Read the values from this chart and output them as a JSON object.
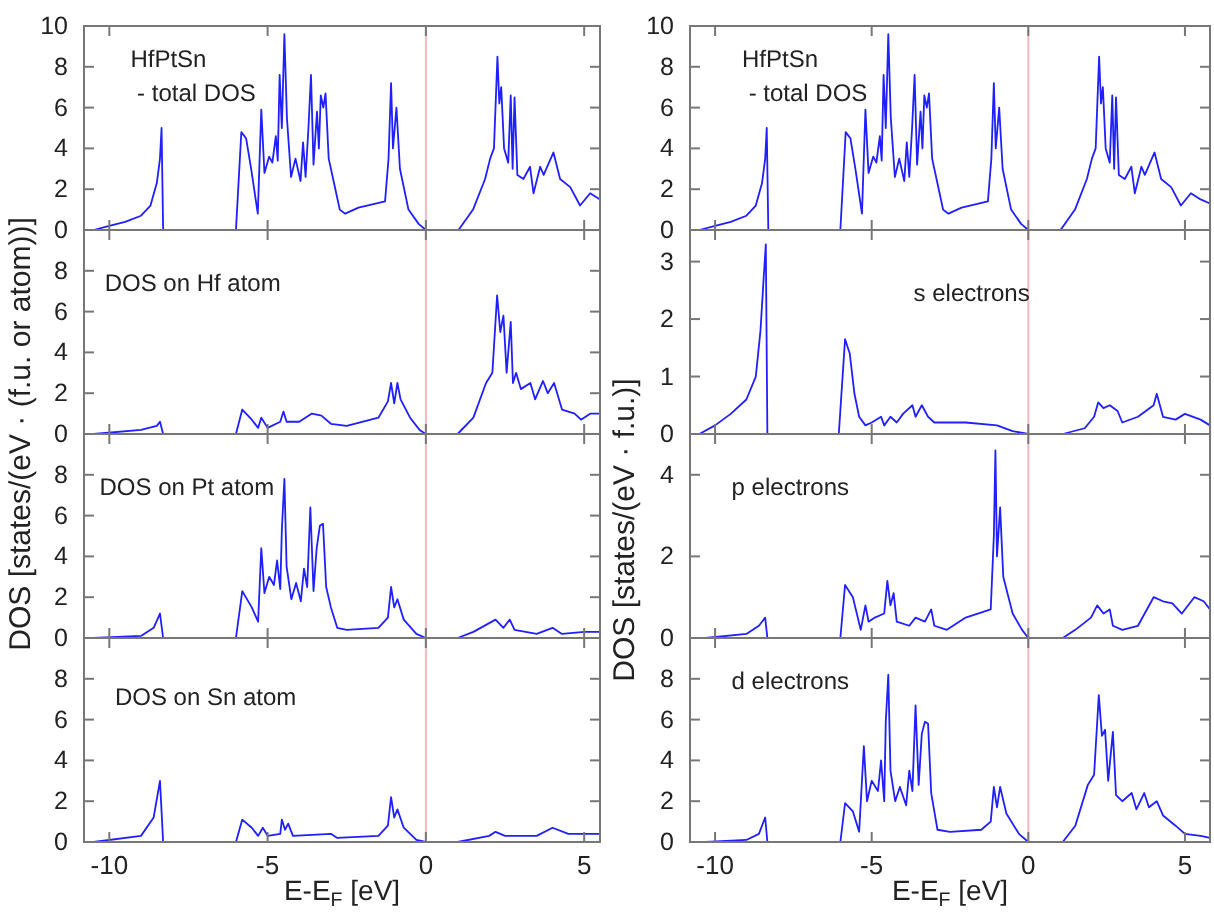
{
  "chart_data": [
    {
      "type": "line",
      "annotations": [
        "HfPtSn\n - total DOS"
      ],
      "xlim": [
        -10.8,
        5.5
      ],
      "ylim": [
        0,
        10
      ],
      "xticks": [
        -10,
        -5,
        0,
        5
      ],
      "yticks": [
        0,
        2,
        4,
        6,
        8,
        10
      ],
      "tick_labels": "y",
      "ref_lines": [
        {
          "axis": "x",
          "value": 0,
          "color": "#f4b8c0"
        }
      ],
      "series": [
        {
          "color": "#1f1fff",
          "x": [
            -10.5,
            -10,
            -9.5,
            -9,
            -8.7,
            -8.5,
            -8.4,
            -8.35,
            -8.3,
            -6,
            -5.83,
            -5.68,
            -5.52,
            -5.31,
            -5.2,
            -5.1,
            -4.95,
            -4.85,
            -4.74,
            -4.68,
            -4.62,
            -4.55,
            -4.47,
            -4.39,
            -4.26,
            -4.12,
            -3.96,
            -3.88,
            -3.8,
            -3.71,
            -3.63,
            -3.55,
            -3.44,
            -3.38,
            -3.32,
            -3.24,
            -3.17,
            -3.07,
            -2.86,
            -2.72,
            -2.55,
            -2.13,
            -1.29,
            -1.18,
            -1.1,
            -1.04,
            -0.93,
            -0.82,
            -0.55,
            -0.23,
            0,
            1.03,
            1.49,
            1.87,
            2.03,
            2.15,
            2.26,
            2.32,
            2.38,
            2.47,
            2.6,
            2.68,
            2.74,
            2.8,
            2.89,
            3.08,
            3.29,
            3.4,
            3.61,
            3.72,
            4.03,
            4.24,
            4.56,
            4.87,
            5.19,
            5.5
          ],
          "values": [
            0,
            0.2,
            0.4,
            0.7,
            1.2,
            2.3,
            3.5,
            5.0,
            0,
            0,
            4.8,
            4.5,
            3.0,
            0.8,
            5.9,
            2.8,
            3.6,
            3.3,
            4.6,
            3.4,
            7.6,
            5.0,
            9.6,
            5.5,
            2.6,
            3.5,
            2.4,
            4.3,
            2.6,
            5.0,
            7.6,
            3.2,
            5.8,
            4.0,
            6.6,
            6.0,
            6.7,
            3.5,
            2.0,
            1.0,
            0.8,
            1.1,
            1.4,
            3.5,
            7.2,
            4.0,
            6.0,
            3.0,
            1.0,
            0.3,
            0,
            0,
            1.0,
            2.5,
            3.5,
            4.0,
            8.5,
            6.2,
            7.0,
            4.0,
            3.3,
            6.6,
            3.0,
            6.5,
            2.7,
            2.5,
            3.1,
            1.8,
            3.1,
            2.7,
            3.8,
            2.5,
            2.1,
            1.2,
            1.8,
            1.5
          ]
        }
      ]
    },
    {
      "type": "line",
      "annotations": [
        "DOS on Hf atom"
      ],
      "ylabel": "DOS [states/(eV · (f.u. or atom))]",
      "xlim": [
        -10.8,
        5.5
      ],
      "ylim": [
        0,
        10
      ],
      "xticks": [
        -10,
        -5,
        0,
        5
      ],
      "yticks": [
        0,
        2,
        4,
        6,
        8
      ],
      "tick_labels": "y",
      "ref_lines": [
        {
          "axis": "x",
          "value": 0,
          "color": "#f4b8c0"
        }
      ],
      "series": [
        {
          "color": "#1f1fff",
          "x": [
            -10.5,
            -9,
            -8.5,
            -8.4,
            -8.3,
            -6,
            -5.8,
            -5.5,
            -5.3,
            -5.2,
            -5.0,
            -4.6,
            -4.5,
            -4.4,
            -4.0,
            -3.6,
            -3.3,
            -3.0,
            -2.5,
            -1.5,
            -1.2,
            -1.1,
            -1.0,
            -0.9,
            -0.8,
            -0.5,
            -0.2,
            0,
            1.0,
            1.5,
            1.9,
            2.1,
            2.25,
            2.35,
            2.45,
            2.55,
            2.68,
            2.75,
            2.85,
            3.0,
            3.3,
            3.45,
            3.7,
            3.85,
            4.05,
            4.3,
            4.7,
            4.9,
            5.2,
            5.5
          ],
          "values": [
            0,
            0.2,
            0.4,
            0.6,
            0,
            0,
            1.2,
            0.7,
            0.3,
            0.8,
            0.3,
            0.6,
            1.1,
            0.6,
            0.6,
            1.0,
            0.9,
            0.5,
            0.4,
            0.8,
            1.6,
            2.5,
            1.5,
            2.5,
            1.7,
            0.8,
            0.2,
            0,
            0,
            0.8,
            2.5,
            3.0,
            6.8,
            5.0,
            5.8,
            3.0,
            5.5,
            2.5,
            3.0,
            2.2,
            2.5,
            1.7,
            2.6,
            2.0,
            2.5,
            1.2,
            1.0,
            0.7,
            1.0,
            1.0
          ]
        }
      ]
    },
    {
      "type": "line",
      "annotations": [
        "DOS on Pt atom"
      ],
      "xlim": [
        -10.8,
        5.5
      ],
      "ylim": [
        0,
        10
      ],
      "xticks": [
        -10,
        -5,
        0,
        5
      ],
      "yticks": [
        0,
        2,
        4,
        6,
        8
      ],
      "tick_labels": "y",
      "ref_lines": [
        {
          "axis": "x",
          "value": 0,
          "color": "#f4b8c0"
        }
      ],
      "series": [
        {
          "color": "#1f1fff",
          "x": [
            -10.5,
            -9,
            -8.6,
            -8.4,
            -8.3,
            -6,
            -5.8,
            -5.5,
            -5.3,
            -5.2,
            -5.1,
            -4.95,
            -4.8,
            -4.7,
            -4.6,
            -4.55,
            -4.47,
            -4.4,
            -4.25,
            -4.1,
            -3.95,
            -3.85,
            -3.75,
            -3.65,
            -3.55,
            -3.45,
            -3.35,
            -3.25,
            -3.15,
            -3.0,
            -2.8,
            -2.5,
            -1.5,
            -1.2,
            -1.1,
            -1.0,
            -0.9,
            -0.7,
            -0.3,
            0,
            1.0,
            1.5,
            2.2,
            2.45,
            2.65,
            2.8,
            3.5,
            4.0,
            4.3,
            5.0,
            5.5
          ],
          "values": [
            0,
            0.1,
            0.5,
            1.2,
            0,
            0,
            2.3,
            1.5,
            0.8,
            4.4,
            2.2,
            3.0,
            2.6,
            3.8,
            2.4,
            5.3,
            7.8,
            3.5,
            1.9,
            2.7,
            1.8,
            3.4,
            2.5,
            6.4,
            2.3,
            4.4,
            5.5,
            5.6,
            2.5,
            1.5,
            0.5,
            0.4,
            0.5,
            1.0,
            2.5,
            1.5,
            1.9,
            0.9,
            0.2,
            0,
            0,
            0.3,
            0.9,
            0.5,
            0.9,
            0.4,
            0.2,
            0.5,
            0.2,
            0.3,
            0.3
          ]
        }
      ]
    },
    {
      "type": "line",
      "annotations": [
        "DOS on Sn atom"
      ],
      "xlabel": "E-E$_{F}$ [eV]",
      "xlim": [
        -10.8,
        5.5
      ],
      "ylim": [
        0,
        10
      ],
      "xticks": [
        -10,
        -5,
        0,
        5
      ],
      "yticks": [
        0,
        2,
        4,
        6,
        8
      ],
      "ref_lines": [
        {
          "axis": "x",
          "value": 0,
          "color": "#f4b8c0"
        }
      ],
      "series": [
        {
          "color": "#1f1fff",
          "x": [
            -10.5,
            -9,
            -8.6,
            -8.4,
            -8.3,
            -6,
            -5.8,
            -5.5,
            -5.3,
            -5.15,
            -5.0,
            -4.6,
            -4.55,
            -4.45,
            -4.35,
            -4.2,
            -3.0,
            -2.8,
            -1.5,
            -1.2,
            -1.1,
            -1.0,
            -0.9,
            -0.7,
            -0.3,
            0,
            1.0,
            2.0,
            2.2,
            2.5,
            3.5,
            4.0,
            4.5,
            5.5
          ],
          "values": [
            0,
            0.3,
            1.2,
            3.0,
            0,
            0,
            1.1,
            0.7,
            0.3,
            0.7,
            0.3,
            0.4,
            1.1,
            0.6,
            0.9,
            0.3,
            0.4,
            0.2,
            0.3,
            0.8,
            2.2,
            1.2,
            1.6,
            0.7,
            0.1,
            0,
            0,
            0.3,
            0.5,
            0.3,
            0.3,
            0.7,
            0.4,
            0.4
          ]
        }
      ]
    },
    {
      "type": "line",
      "annotations": [
        "HfPtSn\n - total DOS"
      ],
      "xlim": [
        -10.8,
        5.8
      ],
      "ylim": [
        0,
        10
      ],
      "xticks": [
        -10,
        -5,
        0,
        5
      ],
      "yticks": [
        0,
        2,
        4,
        6,
        8,
        10
      ],
      "tick_labels": "y",
      "ref_lines": [
        {
          "axis": "x",
          "value": 0,
          "color": "#f4b8c0"
        }
      ],
      "series": [
        {
          "color": "#1f1fff",
          "x": [
            -10.5,
            -10,
            -9.5,
            -9,
            -8.7,
            -8.5,
            -8.4,
            -8.35,
            -8.3,
            -6,
            -5.83,
            -5.68,
            -5.52,
            -5.31,
            -5.2,
            -5.1,
            -4.95,
            -4.85,
            -4.74,
            -4.68,
            -4.62,
            -4.55,
            -4.47,
            -4.39,
            -4.26,
            -4.12,
            -3.96,
            -3.88,
            -3.8,
            -3.71,
            -3.63,
            -3.55,
            -3.44,
            -3.38,
            -3.32,
            -3.24,
            -3.17,
            -3.07,
            -2.86,
            -2.72,
            -2.55,
            -2.13,
            -1.29,
            -1.18,
            -1.1,
            -1.04,
            -0.93,
            -0.82,
            -0.55,
            -0.23,
            0,
            1.03,
            1.49,
            1.87,
            2.03,
            2.15,
            2.26,
            2.32,
            2.38,
            2.47,
            2.6,
            2.68,
            2.74,
            2.8,
            2.89,
            3.08,
            3.29,
            3.4,
            3.61,
            3.72,
            4.03,
            4.24,
            4.56,
            4.87,
            5.19,
            5.5,
            5.8
          ],
          "values": [
            0,
            0.2,
            0.4,
            0.7,
            1.2,
            2.3,
            3.5,
            5.0,
            0,
            0,
            4.8,
            4.5,
            3.0,
            0.8,
            5.9,
            2.8,
            3.6,
            3.3,
            4.6,
            3.4,
            7.6,
            5.0,
            9.6,
            5.5,
            2.6,
            3.5,
            2.4,
            4.3,
            2.6,
            5.0,
            7.6,
            3.2,
            5.8,
            4.0,
            6.6,
            6.0,
            6.7,
            3.5,
            2.0,
            1.0,
            0.8,
            1.1,
            1.4,
            3.5,
            7.2,
            4.0,
            6.0,
            3.0,
            1.0,
            0.3,
            0,
            0,
            1.0,
            2.5,
            3.5,
            4.0,
            8.5,
            6.2,
            7.0,
            4.0,
            3.3,
            6.6,
            3.0,
            6.5,
            2.7,
            2.5,
            3.1,
            1.8,
            3.1,
            2.7,
            3.8,
            2.5,
            2.1,
            1.2,
            1.8,
            1.5,
            1.3
          ]
        }
      ]
    },
    {
      "type": "line",
      "annotations": [
        "s electrons"
      ],
      "ylabel": "DOS [states/(eV · f.u.)]",
      "xlim": [
        -10.8,
        5.8
      ],
      "ylim": [
        0,
        3.55
      ],
      "xticks": [
        -10,
        -5,
        0,
        5
      ],
      "yticks": [
        0,
        1,
        2,
        3
      ],
      "tick_labels": "y",
      "ref_lines": [
        {
          "axis": "x",
          "value": 0,
          "color": "#f4b8c0"
        }
      ],
      "series": [
        {
          "color": "#1f1fff",
          "x": [
            -10.5,
            -10,
            -9.5,
            -9,
            -8.7,
            -8.55,
            -8.45,
            -8.38,
            -8.33,
            -6.05,
            -5.85,
            -5.7,
            -5.55,
            -5.4,
            -5.2,
            -5.0,
            -4.7,
            -4.6,
            -4.4,
            -4.2,
            -4.0,
            -3.7,
            -3.6,
            -3.4,
            -3.2,
            -3.0,
            -2.0,
            -1.0,
            -0.5,
            0,
            1.1,
            1.8,
            2.1,
            2.23,
            2.4,
            2.6,
            2.85,
            3.0,
            3.5,
            4.0,
            4.1,
            4.3,
            4.7,
            5.0,
            5.5,
            5.8
          ],
          "values": [
            0,
            0.15,
            0.35,
            0.6,
            1.0,
            1.8,
            2.7,
            3.3,
            0,
            0,
            1.65,
            1.4,
            0.7,
            0.3,
            0.15,
            0.2,
            0.3,
            0.15,
            0.3,
            0.2,
            0.35,
            0.5,
            0.3,
            0.5,
            0.3,
            0.2,
            0.2,
            0.15,
            0.05,
            0,
            0,
            0.1,
            0.3,
            0.55,
            0.45,
            0.5,
            0.4,
            0.2,
            0.3,
            0.5,
            0.7,
            0.3,
            0.25,
            0.35,
            0.25,
            0.15
          ]
        }
      ]
    },
    {
      "type": "line",
      "annotations": [
        "p electrons"
      ],
      "xlim": [
        -10.8,
        5.8
      ],
      "ylim": [
        0,
        5
      ],
      "xticks": [
        -10,
        -5,
        0,
        5
      ],
      "yticks": [
        0,
        2,
        4
      ],
      "tick_labels": "y",
      "ref_lines": [
        {
          "axis": "x",
          "value": 0,
          "color": "#f4b8c0"
        }
      ],
      "series": [
        {
          "color": "#1f1fff",
          "x": [
            -10.3,
            -9,
            -8.6,
            -8.4,
            -8.33,
            -6,
            -5.85,
            -5.6,
            -5.35,
            -5.2,
            -5.1,
            -4.9,
            -4.6,
            -4.5,
            -4.4,
            -4.3,
            -4.2,
            -3.8,
            -3.6,
            -3.3,
            -3.1,
            -3.0,
            -2.6,
            -2.0,
            -1.2,
            -1.1,
            -1.05,
            -1.0,
            -0.9,
            -0.8,
            -0.5,
            -0.2,
            0,
            1.1,
            1.5,
            2.0,
            2.2,
            2.4,
            2.6,
            2.7,
            3.0,
            3.5,
            4.0,
            4.3,
            4.6,
            4.9,
            5.3,
            5.6,
            5.8
          ],
          "values": [
            0,
            0.1,
            0.3,
            0.5,
            0,
            0,
            1.3,
            1.0,
            0.2,
            0.8,
            0.4,
            0.5,
            0.6,
            1.4,
            0.8,
            1.1,
            0.4,
            0.3,
            0.5,
            0.4,
            0.7,
            0.3,
            0.2,
            0.5,
            0.7,
            2.5,
            4.6,
            2.0,
            3.2,
            1.5,
            0.6,
            0.2,
            0,
            0,
            0.2,
            0.5,
            0.8,
            0.6,
            0.7,
            0.3,
            0.2,
            0.3,
            1.0,
            0.9,
            0.85,
            0.6,
            1.0,
            0.9,
            0.7
          ]
        }
      ]
    },
    {
      "type": "line",
      "annotations": [
        "d electrons"
      ],
      "xlabel": "E-E$_{F}$ [eV]",
      "xlim": [
        -10.8,
        5.8
      ],
      "ylim": [
        0,
        10
      ],
      "xticks": [
        -10,
        -5,
        0,
        5
      ],
      "yticks": [
        0,
        2,
        4,
        6,
        8
      ],
      "ref_lines": [
        {
          "axis": "x",
          "value": 0,
          "color": "#f4b8c0"
        }
      ],
      "series": [
        {
          "color": "#1f1fff",
          "x": [
            -10.3,
            -9,
            -8.6,
            -8.4,
            -8.33,
            -6,
            -5.85,
            -5.6,
            -5.4,
            -5.25,
            -5.15,
            -5.0,
            -4.8,
            -4.7,
            -4.6,
            -4.55,
            -4.47,
            -4.4,
            -4.25,
            -4.1,
            -3.9,
            -3.8,
            -3.7,
            -3.6,
            -3.5,
            -3.4,
            -3.3,
            -3.2,
            -3.1,
            -2.9,
            -2.5,
            -1.5,
            -1.2,
            -1.1,
            -1.0,
            -0.9,
            -0.7,
            -0.3,
            0,
            1.1,
            1.5,
            1.9,
            2.1,
            2.25,
            2.35,
            2.45,
            2.55,
            2.7,
            2.8,
            3.0,
            3.3,
            3.45,
            3.7,
            3.85,
            4.1,
            4.3,
            4.7,
            5.0,
            5.5,
            5.8
          ],
          "values": [
            0,
            0.1,
            0.4,
            1.2,
            0,
            0,
            1.9,
            1.5,
            0.5,
            4.7,
            2.0,
            3.0,
            2.5,
            4.0,
            2.0,
            5.9,
            8.2,
            3.5,
            2.0,
            2.7,
            1.8,
            3.5,
            2.5,
            6.7,
            2.8,
            5.3,
            5.9,
            5.8,
            2.4,
            0.6,
            0.5,
            0.6,
            1.0,
            2.7,
            1.7,
            2.7,
            1.4,
            0.4,
            0,
            0,
            0.8,
            2.8,
            3.3,
            7.2,
            5.2,
            5.5,
            3.0,
            5.4,
            2.3,
            2.0,
            2.4,
            1.6,
            2.4,
            1.7,
            2.0,
            1.3,
            0.8,
            0.4,
            0.3,
            0.2
          ]
        }
      ]
    }
  ]
}
